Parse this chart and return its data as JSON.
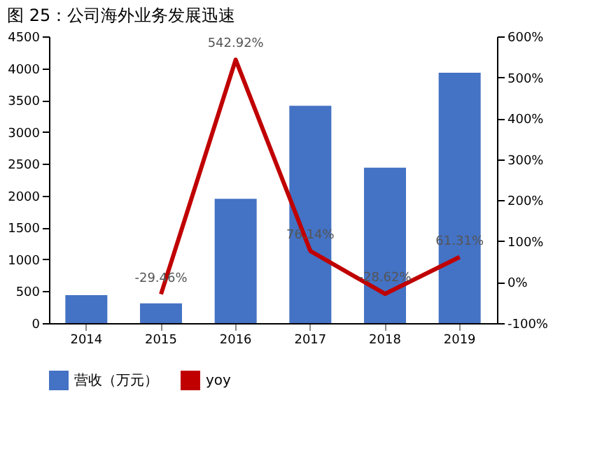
{
  "chart_data": {
    "type": "bar",
    "title": "图 25：公司海外业务发展迅速",
    "categories": [
      "2014",
      "2015",
      "2016",
      "2017",
      "2018",
      "2019"
    ],
    "series": [
      {
        "name": "营收（万元）",
        "color": "#4472c4",
        "values": [
          440,
          310,
          1950,
          3410,
          2440,
          3930
        ]
      },
      {
        "name": "yoy",
        "type": "line",
        "axis": "y2",
        "color": "#c00000",
        "values": [
          null,
          -29.46,
          542.92,
          76.14,
          -28.62,
          61.31
        ],
        "value_labels": [
          null,
          "-29.46%",
          "542.92%",
          "76.14%",
          "-28.62%",
          "61.31%"
        ]
      }
    ],
    "ylim": [
      0,
      4500
    ],
    "yticks": [
      0,
      500,
      1000,
      1500,
      2000,
      2500,
      3000,
      3500,
      4000,
      4500
    ],
    "y2lim": [
      -100,
      600
    ],
    "y2ticks": [
      {
        "value": -100,
        "label": "-100%"
      },
      {
        "value": 0,
        "label": "0%"
      },
      {
        "value": 100,
        "label": "100%"
      },
      {
        "value": 200,
        "label": "200%"
      },
      {
        "value": 300,
        "label": "300%"
      },
      {
        "value": 400,
        "label": "400%"
      },
      {
        "value": 500,
        "label": "500%"
      },
      {
        "value": 600,
        "label": "600%"
      }
    ],
    "grid": false,
    "legend": "bottom",
    "marker": "none",
    "line_style": "solid"
  }
}
